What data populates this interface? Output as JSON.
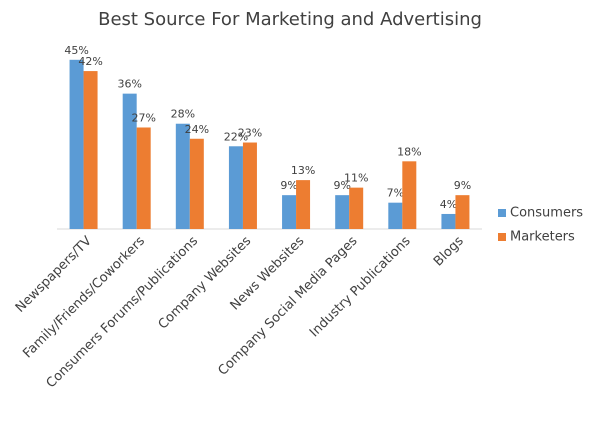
{
  "chart_data": {
    "type": "bar",
    "title": "Best Source For Marketing and Advertising",
    "categories": [
      "Newspapers/TV",
      "Family/Friends/Coworkers",
      "Consumers Forums/Publications",
      "Company Websites",
      "News Websites",
      "Company Social Media Pages",
      "Industry Publications",
      "Blogs"
    ],
    "series": [
      {
        "name": "Consumers",
        "color": "#5b9bd5",
        "values": [
          45,
          36,
          28,
          22,
          9,
          9,
          7,
          4
        ],
        "value_labels": [
          "45%",
          "36%",
          "28%",
          "22%",
          "9%",
          "9%",
          "7%",
          "4%"
        ]
      },
      {
        "name": "Marketers",
        "color": "#ed7d31",
        "values": [
          42,
          27,
          24,
          23,
          13,
          11,
          18,
          9
        ],
        "value_labels": [
          "42%",
          "27%",
          "24%",
          "23%",
          "13%",
          "11%",
          "18%",
          "9%"
        ]
      }
    ],
    "legend": "right"
  }
}
